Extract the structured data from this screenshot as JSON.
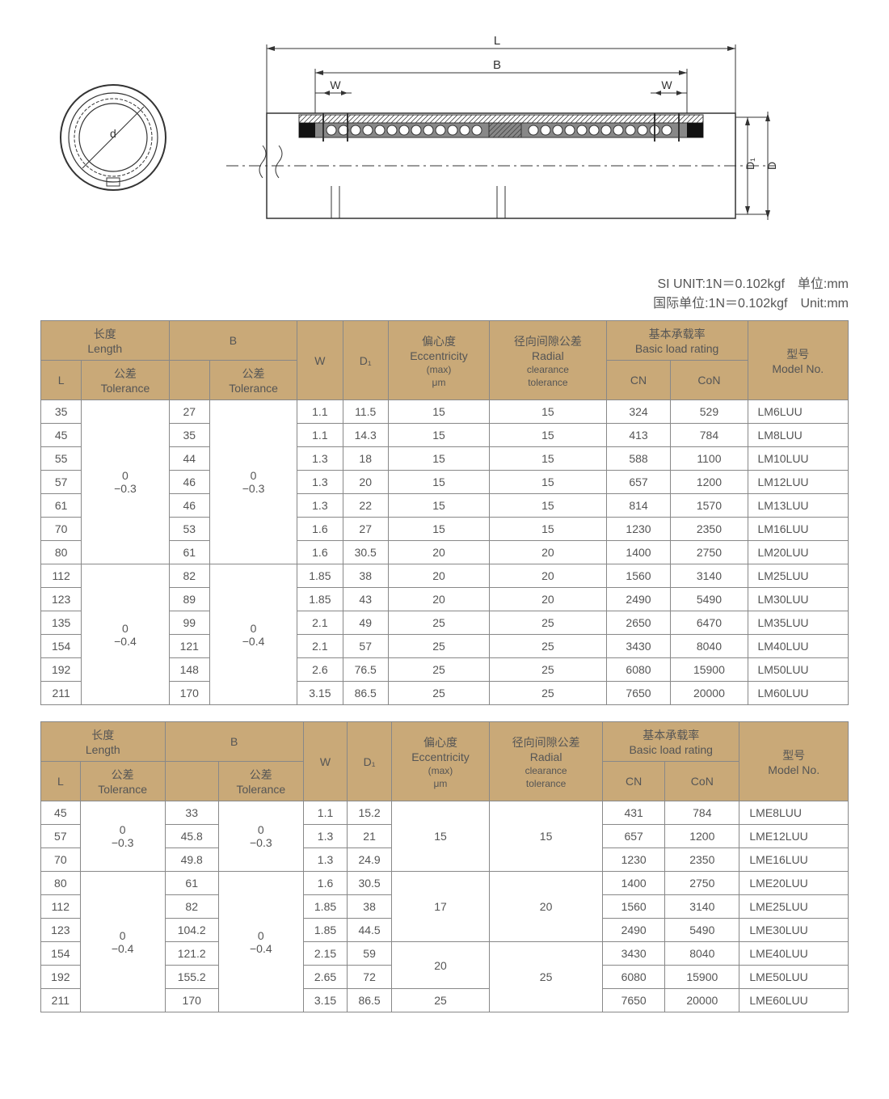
{
  "colors": {
    "header_bg": "#c9a978",
    "border": "#888888",
    "text": "#555555",
    "diagram_stroke": "#333333",
    "background": "#ffffff"
  },
  "units": {
    "line1": "SI UNIT:1N＝0.102kgf　单位:mm",
    "line2": "国际单位:1N＝0.102kgf　Unit:mm"
  },
  "diagram_labels": {
    "L": "L",
    "B": "B",
    "W": "W",
    "D1": "D₁",
    "D": "D",
    "d": "d"
  },
  "headers": {
    "length_cn": "长度",
    "length_en": "Length",
    "L": "L",
    "tol_cn": "公差",
    "tol_en": "Tolerance",
    "B": "B",
    "W": "W",
    "D1": "D₁",
    "ecc_cn": "偏心度",
    "ecc_en": "Eccentricity",
    "ecc_sub": "(max)",
    "ecc_unit": "μm",
    "rad_cn": "径向间隙公差",
    "rad_en": "Radial",
    "rad_sub1": "clearance",
    "rad_sub2": "tolerance",
    "load_cn": "基本承载率",
    "load_en": "Basic load rating",
    "CN": "CN",
    "CoN": "CoN",
    "model_cn": "型号",
    "model_en": "Model No."
  },
  "tolerances": {
    "g1": "0\n−0.3",
    "g2": "0\n−0.4"
  },
  "table1_groups": [
    {
      "L_tol": "0\n−0.3",
      "B_tol": "0\n−0.3",
      "rows": [
        {
          "L": "35",
          "B": "27",
          "W": "1.1",
          "D1": "11.5",
          "ecc": "15",
          "rad": "15",
          "CN": "324",
          "CoN": "529",
          "model": "LM6LUU"
        },
        {
          "L": "45",
          "B": "35",
          "W": "1.1",
          "D1": "14.3",
          "ecc": "15",
          "rad": "15",
          "CN": "413",
          "CoN": "784",
          "model": "LM8LUU"
        },
        {
          "L": "55",
          "B": "44",
          "W": "1.3",
          "D1": "18",
          "ecc": "15",
          "rad": "15",
          "CN": "588",
          "CoN": "1100",
          "model": "LM10LUU"
        },
        {
          "L": "57",
          "B": "46",
          "W": "1.3",
          "D1": "20",
          "ecc": "15",
          "rad": "15",
          "CN": "657",
          "CoN": "1200",
          "model": "LM12LUU"
        },
        {
          "L": "61",
          "B": "46",
          "W": "1.3",
          "D1": "22",
          "ecc": "15",
          "rad": "15",
          "CN": "814",
          "CoN": "1570",
          "model": "LM13LUU"
        },
        {
          "L": "70",
          "B": "53",
          "W": "1.6",
          "D1": "27",
          "ecc": "15",
          "rad": "15",
          "CN": "1230",
          "CoN": "2350",
          "model": "LM16LUU"
        },
        {
          "L": "80",
          "B": "61",
          "W": "1.6",
          "D1": "30.5",
          "ecc": "20",
          "rad": "20",
          "CN": "1400",
          "CoN": "2750",
          "model": "LM20LUU"
        }
      ]
    },
    {
      "L_tol": "0\n−0.4",
      "B_tol": "0\n−0.4",
      "rows": [
        {
          "L": "112",
          "B": "82",
          "W": "1.85",
          "D1": "38",
          "ecc": "20",
          "rad": "20",
          "CN": "1560",
          "CoN": "3140",
          "model": "LM25LUU"
        },
        {
          "L": "123",
          "B": "89",
          "W": "1.85",
          "D1": "43",
          "ecc": "20",
          "rad": "20",
          "CN": "2490",
          "CoN": "5490",
          "model": "LM30LUU"
        },
        {
          "L": "135",
          "B": "99",
          "W": "2.1",
          "D1": "49",
          "ecc": "25",
          "rad": "25",
          "CN": "2650",
          "CoN": "6470",
          "model": "LM35LUU"
        },
        {
          "L": "154",
          "B": "121",
          "W": "2.1",
          "D1": "57",
          "ecc": "25",
          "rad": "25",
          "CN": "3430",
          "CoN": "8040",
          "model": "LM40LUU"
        },
        {
          "L": "192",
          "B": "148",
          "W": "2.6",
          "D1": "76.5",
          "ecc": "25",
          "rad": "25",
          "CN": "6080",
          "CoN": "15900",
          "model": "LM50LUU"
        },
        {
          "L": "211",
          "B": "170",
          "W": "3.15",
          "D1": "86.5",
          "ecc": "25",
          "rad": "25",
          "CN": "7650",
          "CoN": "20000",
          "model": "LM60LUU"
        }
      ]
    }
  ],
  "table2_groups": [
    {
      "L_tol": "0\n−0.3",
      "B_tol": "0\n−0.3",
      "ecc_merge": [
        {
          "val": "15",
          "span": 3
        }
      ],
      "rad_merge": [
        {
          "val": "15",
          "span": 3
        }
      ],
      "rows": [
        {
          "L": "45",
          "B": "33",
          "W": "1.1",
          "D1": "15.2",
          "CN": "431",
          "CoN": "784",
          "model": "LME8LUU"
        },
        {
          "L": "57",
          "B": "45.8",
          "W": "1.3",
          "D1": "21",
          "CN": "657",
          "CoN": "1200",
          "model": "LME12LUU"
        },
        {
          "L": "70",
          "B": "49.8",
          "W": "1.3",
          "D1": "24.9",
          "CN": "1230",
          "CoN": "2350",
          "model": "LME16LUU"
        }
      ]
    },
    {
      "L_tol": "0\n−0.4",
      "B_tol": "0\n−0.4",
      "ecc_merge": [
        {
          "val": "17",
          "span": 3
        },
        {
          "val": "20",
          "span": 2
        },
        {
          "val": "25",
          "span": 1
        }
      ],
      "rad_merge": [
        {
          "val": "20",
          "span": 3
        },
        {
          "val": "25",
          "span": 3
        }
      ],
      "rows": [
        {
          "L": "80",
          "B": "61",
          "W": "1.6",
          "D1": "30.5",
          "CN": "1400",
          "CoN": "2750",
          "model": "LME20LUU"
        },
        {
          "L": "112",
          "B": "82",
          "W": "1.85",
          "D1": "38",
          "CN": "1560",
          "CoN": "3140",
          "model": "LME25LUU"
        },
        {
          "L": "123",
          "B": "104.2",
          "W": "1.85",
          "D1": "44.5",
          "CN": "2490",
          "CoN": "5490",
          "model": "LME30LUU"
        },
        {
          "L": "154",
          "B": "121.2",
          "W": "2.15",
          "D1": "59",
          "CN": "3430",
          "CoN": "8040",
          "model": "LME40LUU"
        },
        {
          "L": "192",
          "B": "155.2",
          "W": "2.65",
          "D1": "72",
          "CN": "6080",
          "CoN": "15900",
          "model": "LME50LUU"
        },
        {
          "L": "211",
          "B": "170",
          "W": "3.15",
          "D1": "86.5",
          "CN": "7650",
          "CoN": "20000",
          "model": "LME60LUU"
        }
      ]
    }
  ]
}
